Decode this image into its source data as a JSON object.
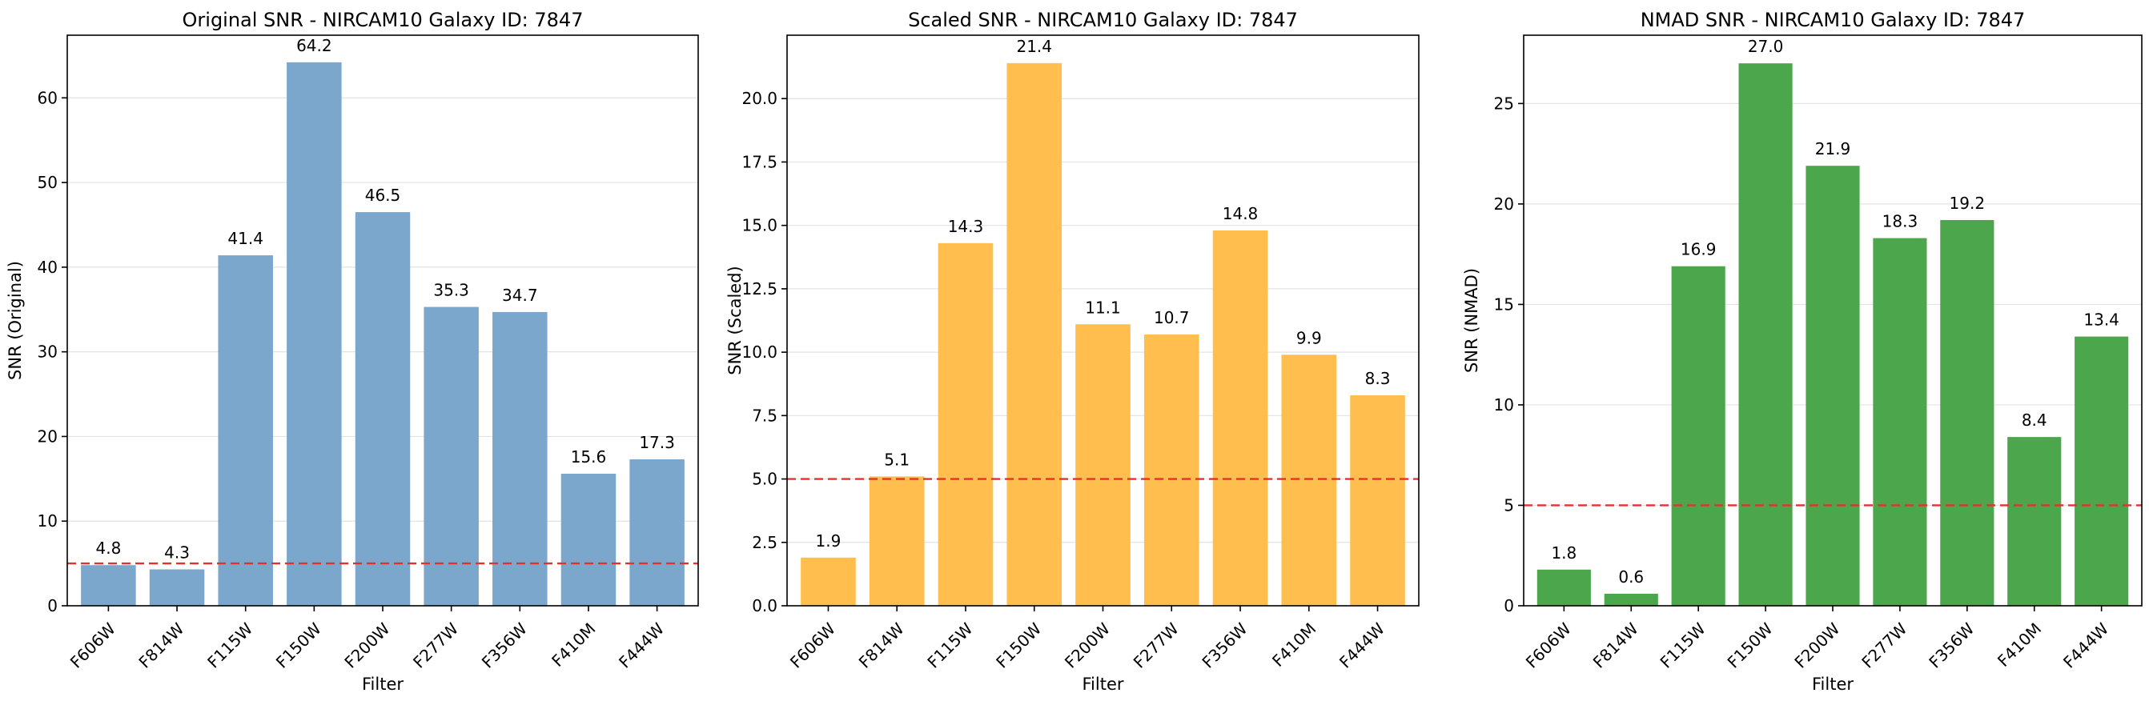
{
  "chart_data": [
    {
      "type": "bar",
      "title": "Original SNR - NIRCAM10 Galaxy ID: 7847",
      "xlabel": "Filter",
      "ylabel": "SNR (Original)",
      "categories": [
        "F606W",
        "F814W",
        "F115W",
        "F150W",
        "F200W",
        "F277W",
        "F356W",
        "F410M",
        "F444W"
      ],
      "values": [
        4.8,
        4.3,
        41.4,
        64.2,
        46.5,
        35.3,
        34.7,
        15.6,
        17.3
      ],
      "value_labels": [
        "4.8",
        "4.3",
        "41.4",
        "64.2",
        "46.5",
        "35.3",
        "34.7",
        "15.6",
        "17.3"
      ],
      "ylim": [
        0,
        67.4
      ],
      "yticks": [
        0,
        10,
        20,
        30,
        40,
        50,
        60
      ],
      "ytick_labels": [
        "0",
        "10",
        "20",
        "30",
        "40",
        "50",
        "60"
      ],
      "threshold": 5,
      "bar_color": "#7BA7CC",
      "grid": "y"
    },
    {
      "type": "bar",
      "title": "Scaled SNR - NIRCAM10 Galaxy ID: 7847",
      "xlabel": "Filter",
      "ylabel": "SNR (Scaled)",
      "categories": [
        "F606W",
        "F814W",
        "F115W",
        "F150W",
        "F200W",
        "F277W",
        "F356W",
        "F410M",
        "F444W"
      ],
      "values": [
        1.9,
        5.1,
        14.3,
        21.4,
        11.1,
        10.7,
        14.8,
        9.9,
        8.3
      ],
      "value_labels": [
        "1.9",
        "5.1",
        "14.3",
        "21.4",
        "11.1",
        "10.7",
        "14.8",
        "9.9",
        "8.3"
      ],
      "ylim": [
        0,
        22.5
      ],
      "yticks": [
        0,
        2.5,
        5,
        7.5,
        10,
        12.5,
        15,
        17.5,
        20
      ],
      "ytick_labels": [
        "0.0",
        "2.5",
        "5.0",
        "7.5",
        "10.0",
        "12.5",
        "15.0",
        "17.5",
        "20.0"
      ],
      "threshold": 5,
      "bar_color": "#FFBE4D",
      "grid": "y"
    },
    {
      "type": "bar",
      "title": "NMAD SNR - NIRCAM10 Galaxy ID: 7847",
      "xlabel": "Filter",
      "ylabel": "SNR (NMAD)",
      "categories": [
        "F606W",
        "F814W",
        "F115W",
        "F150W",
        "F200W",
        "F277W",
        "F356W",
        "F410M",
        "F444W"
      ],
      "values": [
        1.8,
        0.6,
        16.9,
        27.0,
        21.9,
        18.3,
        19.2,
        8.4,
        13.4
      ],
      "value_labels": [
        "1.8",
        "0.6",
        "16.9",
        "27.0",
        "21.9",
        "18.3",
        "19.2",
        "8.4",
        "13.4"
      ],
      "ylim": [
        0,
        28.4
      ],
      "yticks": [
        0,
        5,
        10,
        15,
        20,
        25
      ],
      "ytick_labels": [
        "0",
        "5",
        "10",
        "15",
        "20",
        "25"
      ],
      "threshold": 5,
      "bar_color": "#4CA64C",
      "grid": "y"
    }
  ]
}
